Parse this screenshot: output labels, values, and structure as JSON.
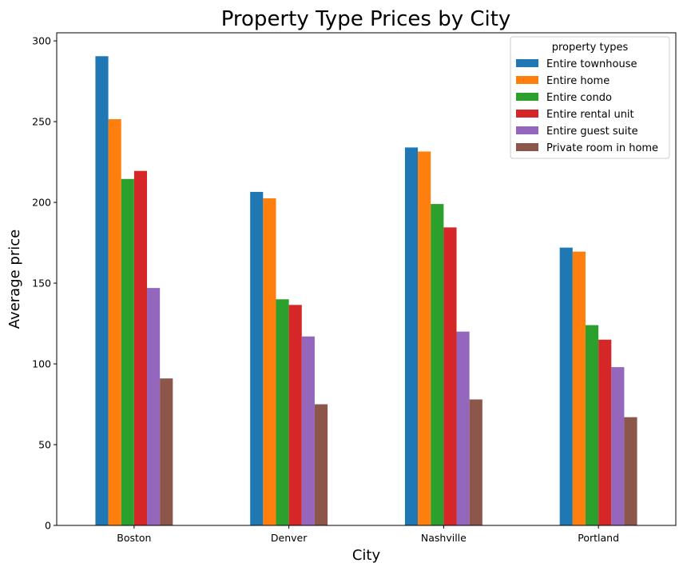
{
  "chart_data": {
    "type": "bar",
    "title": "Property Type Prices by City",
    "xlabel": "City",
    "ylabel": "Average price",
    "categories": [
      "Boston",
      "Denver",
      "Nashville",
      "Portland"
    ],
    "ylim": [
      0,
      305
    ],
    "yticks": [
      "0",
      "50",
      "100",
      "150",
      "200",
      "250",
      "300"
    ],
    "grid": false,
    "legend": {
      "title": "property types",
      "placement": "top-right"
    },
    "series": [
      {
        "name": "Entire townhouse",
        "color": "#1f77b4",
        "values": [
          290.5,
          206.5,
          234,
          172
        ]
      },
      {
        "name": "Entire home",
        "color": "#ff7f0e",
        "values": [
          251.5,
          202.5,
          231.5,
          169.5
        ]
      },
      {
        "name": "Entire condo",
        "color": "#2ca02c",
        "values": [
          214.5,
          140,
          199,
          124
        ]
      },
      {
        "name": "Entire rental unit",
        "color": "#d62728",
        "values": [
          219.5,
          136.5,
          184.5,
          115
        ]
      },
      {
        "name": "Entire guest suite",
        "color": "#9467bd",
        "values": [
          147,
          117,
          120,
          98
        ]
      },
      {
        "name": "Private room in home",
        "color": "#8c564b",
        "values": [
          91,
          75,
          78,
          67
        ]
      }
    ]
  }
}
